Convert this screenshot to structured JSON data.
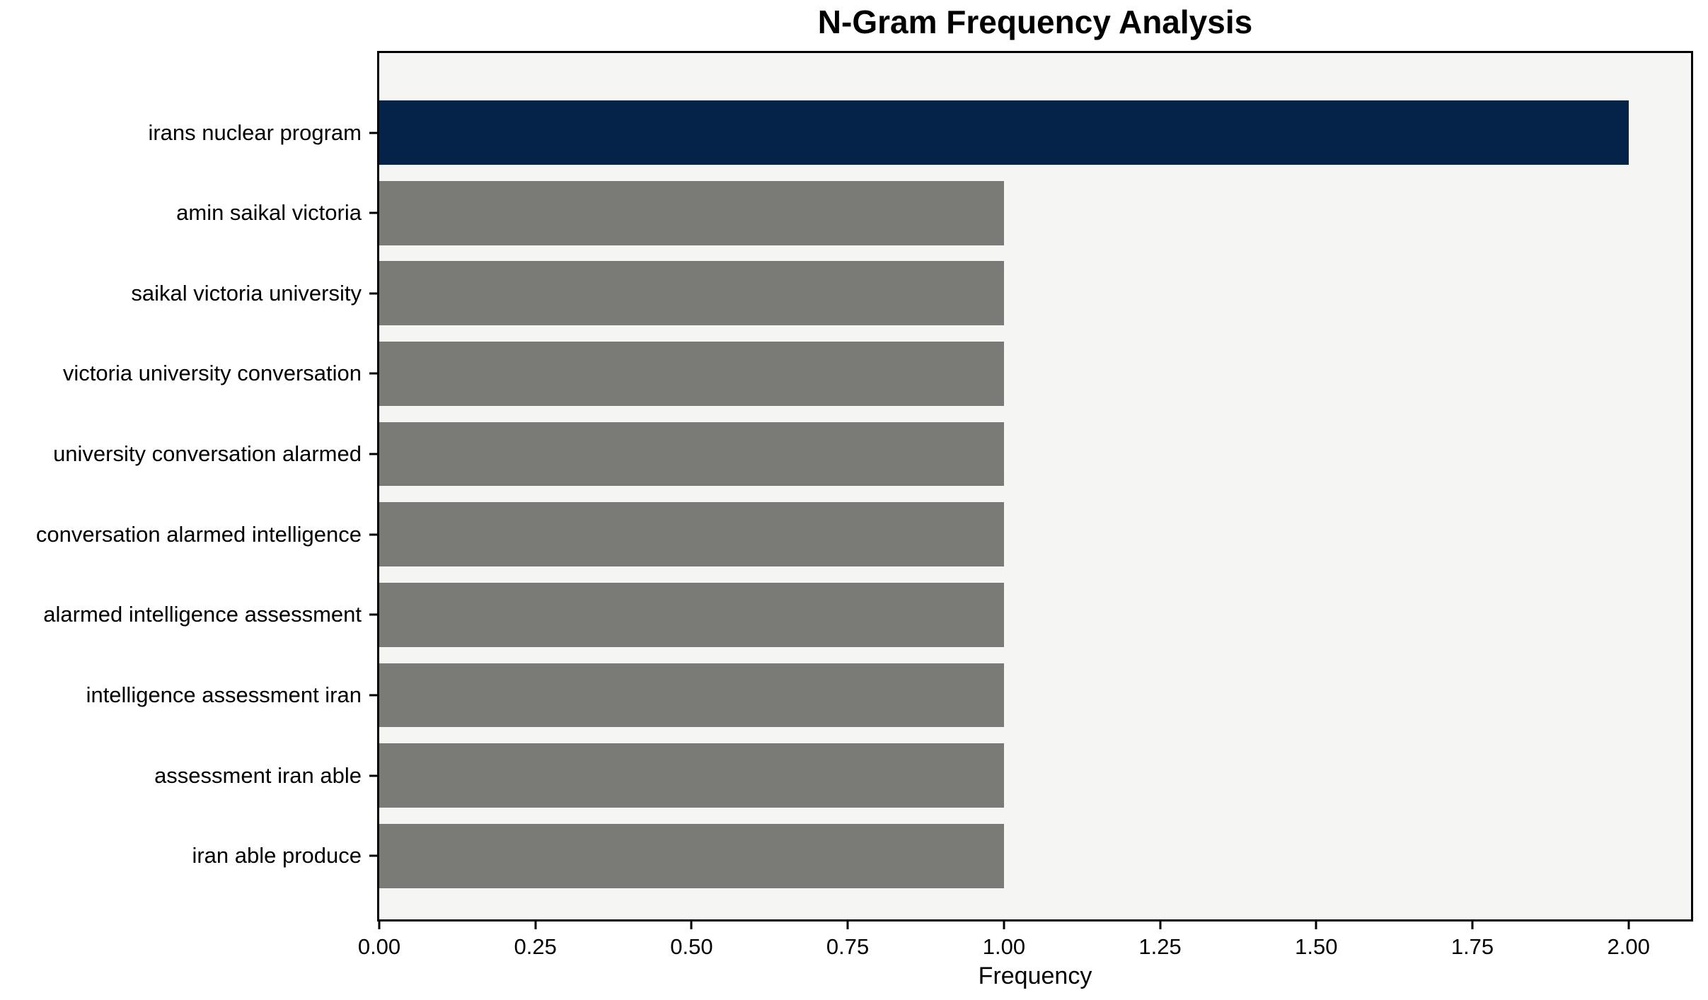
{
  "chart_data": {
    "type": "bar",
    "orientation": "horizontal",
    "title": "N-Gram Frequency Analysis",
    "xlabel": "Frequency",
    "ylabel": "",
    "categories": [
      "irans nuclear program",
      "amin saikal victoria",
      "saikal victoria university",
      "victoria university conversation",
      "university conversation alarmed",
      "conversation alarmed intelligence",
      "alarmed intelligence assessment",
      "intelligence assessment iran",
      "assessment iran able",
      "iran able produce"
    ],
    "values": [
      2.0,
      1.0,
      1.0,
      1.0,
      1.0,
      1.0,
      1.0,
      1.0,
      1.0,
      1.0
    ],
    "bar_colors": [
      "#052349",
      "#7a7a76",
      "#7a7a76",
      "#7a7a76",
      "#7a7a76",
      "#7a7a76",
      "#7a7a76",
      "#7a7a76",
      "#7a7a76",
      "#7a7a76"
    ],
    "xlim": [
      0,
      2.1
    ],
    "xticks": [
      "0.00",
      "0.25",
      "0.50",
      "0.75",
      "1.00",
      "1.25",
      "1.50",
      "1.75",
      "2.00"
    ],
    "grid": false,
    "legend": null,
    "plot_background": "#f5f5f3",
    "figure_background": "#ffffff",
    "bar_height_fraction": 0.8
  }
}
